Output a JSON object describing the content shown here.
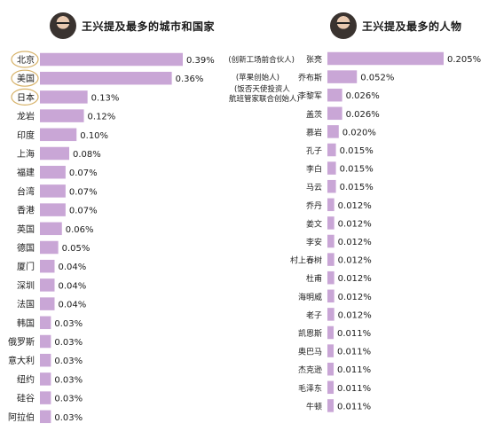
{
  "left_panel": {
    "title": "王兴提及最多的城市和国家"
  },
  "right_panel": {
    "title": "王兴提及最多的人物"
  },
  "colors": {
    "bar": "#c9a6d6",
    "highlight_ring": "#d7b36a",
    "text": "#1a1a1a"
  },
  "chart_data": [
    {
      "type": "bar",
      "orientation": "horizontal",
      "title": "王兴提及最多的城市和国家",
      "categories": [
        "北京",
        "美国",
        "日本",
        "龙岩",
        "印度",
        "上海",
        "福建",
        "台湾",
        "香港",
        "英国",
        "德国",
        "厦门",
        "深圳",
        "法国",
        "韩国",
        "俄罗斯",
        "意大利",
        "纽约",
        "硅谷",
        "阿拉伯"
      ],
      "values": [
        0.39,
        0.36,
        0.13,
        0.12,
        0.1,
        0.08,
        0.07,
        0.07,
        0.07,
        0.06,
        0.05,
        0.04,
        0.04,
        0.04,
        0.03,
        0.03,
        0.03,
        0.03,
        0.03,
        0.03
      ],
      "value_labels": [
        "0.39%",
        "0.36%",
        "0.13%",
        "0.12%",
        "0.10%",
        "0.08%",
        "0.07%",
        "0.07%",
        "0.07%",
        "0.06%",
        "0.05%",
        "0.04%",
        "0.04%",
        "0.04%",
        "0.03%",
        "0.03%",
        "0.03%",
        "0.03%",
        "0.03%",
        "0.03%"
      ],
      "highlighted": [
        "北京",
        "美国",
        "日本"
      ],
      "xlim": [
        0,
        0.4
      ],
      "grid": false,
      "legend": "none"
    },
    {
      "type": "bar",
      "orientation": "horizontal",
      "title": "王兴提及最多的人物",
      "categories": [
        "张亮",
        "乔布斯",
        "李黎军",
        "盖茨",
        "慕岩",
        "孔子",
        "李白",
        "马云",
        "乔丹",
        "姜文",
        "李安",
        "村上春树",
        "杜甫",
        "海明威",
        "老子",
        "凯恩斯",
        "奥巴马",
        "杰克逊",
        "毛泽东",
        "牛顿"
      ],
      "annotations": [
        [
          "(创新工场前合伙人)"
        ],
        [
          "(苹果创始人)"
        ],
        [
          "(饭否天使投资人",
          "航班管家联合创始人)"
        ]
      ],
      "values": [
        0.205,
        0.052,
        0.026,
        0.026,
        0.02,
        0.015,
        0.015,
        0.015,
        0.012,
        0.012,
        0.012,
        0.012,
        0.012,
        0.012,
        0.012,
        0.011,
        0.011,
        0.011,
        0.011,
        0.011
      ],
      "value_labels": [
        "0.205%",
        "0.052%",
        "0.026%",
        "0.026%",
        "0.020%",
        "0.015%",
        "0.015%",
        "0.015%",
        "0.012%",
        "0.012%",
        "0.012%",
        "0.012%",
        "0.012%",
        "0.012%",
        "0.012%",
        "0.011%",
        "0.011%",
        "0.011%",
        "0.011%",
        "0.011%"
      ],
      "xlim": [
        0,
        0.21
      ],
      "grid": false,
      "legend": "none"
    }
  ]
}
